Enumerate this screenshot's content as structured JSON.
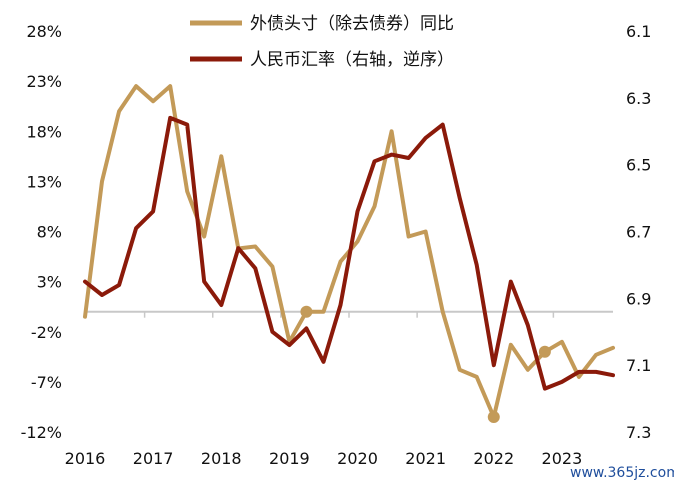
{
  "chart_data": {
    "type": "line",
    "legend_position": "top",
    "grid": false,
    "x_ticks": [
      "2016",
      "2017",
      "2018",
      "2019",
      "2020",
      "2021",
      "2022",
      "2023"
    ],
    "y_left_ticks": [
      "28%",
      "23%",
      "18%",
      "13%",
      "8%",
      "3%",
      "-2%",
      "-7%",
      "-12%"
    ],
    "y_left_values": [
      28,
      23,
      18,
      13,
      8,
      3,
      -2,
      -7,
      -12
    ],
    "y_right_ticks": [
      "6.1",
      "6.3",
      "6.5",
      "6.7",
      "6.9",
      "7.1",
      "7.3"
    ],
    "y_right_values": [
      6.1,
      6.3,
      6.5,
      6.7,
      6.9,
      7.1,
      7.3
    ],
    "y_right_reversed": true,
    "series": [
      {
        "name": "外债头寸（除去债券）同比",
        "axis": "left",
        "color": "#c39a58",
        "x": [
          2016.0,
          2016.25,
          2016.5,
          2016.75,
          2017.0,
          2017.25,
          2017.5,
          2017.75,
          2018.0,
          2018.25,
          2018.5,
          2018.75,
          2019.0,
          2019.25,
          2019.5,
          2019.75,
          2020.0,
          2020.25,
          2020.5,
          2020.75,
          2021.0,
          2021.25,
          2021.5,
          2021.75,
          2022.0,
          2022.25,
          2022.5,
          2022.75,
          2023.0,
          2023.25,
          2023.5,
          2023.75
        ],
        "values": [
          -0.5,
          13.0,
          20.0,
          22.5,
          21.0,
          22.5,
          12.0,
          7.5,
          15.5,
          6.3,
          6.5,
          4.5,
          -3.0,
          0.0,
          0.0,
          5.0,
          7.0,
          10.5,
          18.0,
          7.5,
          8.0,
          0.0,
          -5.8,
          -6.5,
          -10.5,
          -3.3,
          -5.8,
          -4.0,
          -3.0,
          -6.5,
          -4.3,
          -3.6
        ],
        "markers": [
          [
            2019.25,
            0.0
          ],
          [
            2022.0,
            -10.5
          ],
          [
            2022.75,
            -4.0
          ]
        ]
      },
      {
        "name": "人民币汇率（右轴，逆序）",
        "axis": "right",
        "color": "#8b1a0a",
        "x": [
          2016.0,
          2016.25,
          2016.5,
          2016.75,
          2017.0,
          2017.25,
          2017.5,
          2017.75,
          2018.0,
          2018.25,
          2018.5,
          2018.75,
          2019.0,
          2019.25,
          2019.5,
          2019.75,
          2020.0,
          2020.25,
          2020.5,
          2020.75,
          2021.0,
          2021.25,
          2021.5,
          2021.75,
          2022.0,
          2022.25,
          2022.5,
          2022.75,
          2023.0,
          2023.25,
          2023.5,
          2023.75
        ],
        "values": [
          6.85,
          6.89,
          6.86,
          6.69,
          6.64,
          6.36,
          6.38,
          6.85,
          6.92,
          6.75,
          6.81,
          7.0,
          7.04,
          6.99,
          7.09,
          6.92,
          6.64,
          6.49,
          6.47,
          6.48,
          6.42,
          6.38,
          6.6,
          6.8,
          7.1,
          6.85,
          6.98,
          7.17,
          7.15,
          7.12,
          7.12,
          7.13
        ]
      }
    ]
  },
  "watermark": "www.365jz.com"
}
